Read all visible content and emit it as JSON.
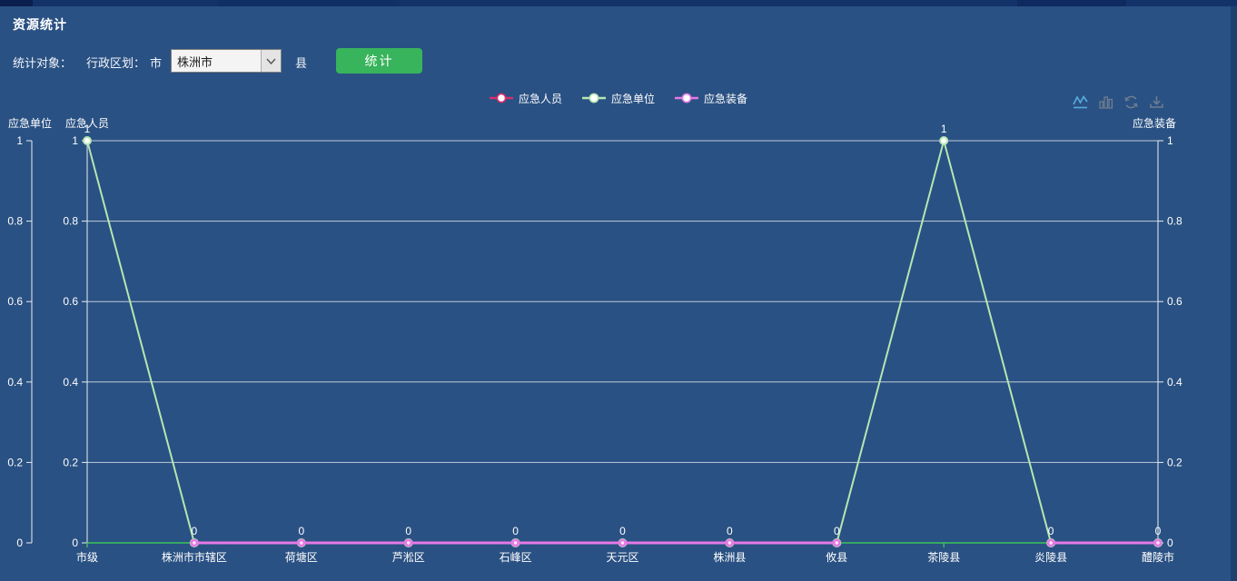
{
  "header": {
    "title": "资源统计"
  },
  "filters": {
    "target_label": "统计对象：",
    "district_label": "行政区划：",
    "city_label": "市",
    "county_label": "县",
    "city_select": {
      "value": "株洲市"
    },
    "submit_button": "统计"
  },
  "toolbox": {
    "icons": [
      {
        "name": "line-chart-icon",
        "active": true
      },
      {
        "name": "bar-chart-icon",
        "active": false
      },
      {
        "name": "restore-icon",
        "active": false
      },
      {
        "name": "download-icon",
        "active": false
      }
    ],
    "active_color": "#58ace0",
    "inactive_color": "#6e7e90"
  },
  "colors": {
    "background": "#2a5183",
    "button_green": "#38b45c",
    "x_axis_green": "#3bc45a",
    "axis_line_white": "#e9eef4",
    "grid_line": "#d9e2ea"
  },
  "chart_data": {
    "type": "line",
    "categories": [
      "市级",
      "株洲市市辖区",
      "荷塘区",
      "芦淞区",
      "石峰区",
      "天元区",
      "株洲县",
      "攸县",
      "茶陵县",
      "炎陵县",
      "醴陵市"
    ],
    "series": [
      {
        "name": "应急人员",
        "color": "#d62e6e",
        "dot_style": "solid",
        "show_labels": false,
        "values": [
          null,
          0,
          0,
          0,
          0,
          0,
          0,
          0,
          null,
          0,
          0
        ]
      },
      {
        "name": "应急单位",
        "color": "#b5e6b2",
        "dot_style": "hollow",
        "show_labels": true,
        "values": [
          1,
          0,
          0,
          0,
          0,
          0,
          0,
          0,
          1,
          0,
          0
        ]
      },
      {
        "name": "应急装备",
        "color": "#e678e6",
        "dot_style": "solid",
        "show_labels": false,
        "values": [
          null,
          0,
          0,
          0,
          0,
          0,
          0,
          0,
          null,
          0,
          0
        ]
      }
    ],
    "y_axes": [
      {
        "name": "应急单位",
        "position": "left"
      },
      {
        "name": "应急人员",
        "position": "left"
      },
      {
        "name": "应急装备",
        "position": "right"
      }
    ],
    "yticks": [
      0,
      0.2,
      0.4,
      0.6,
      0.8,
      1
    ],
    "ylim": [
      0,
      1
    ],
    "grid": true,
    "legend_position": "top"
  }
}
